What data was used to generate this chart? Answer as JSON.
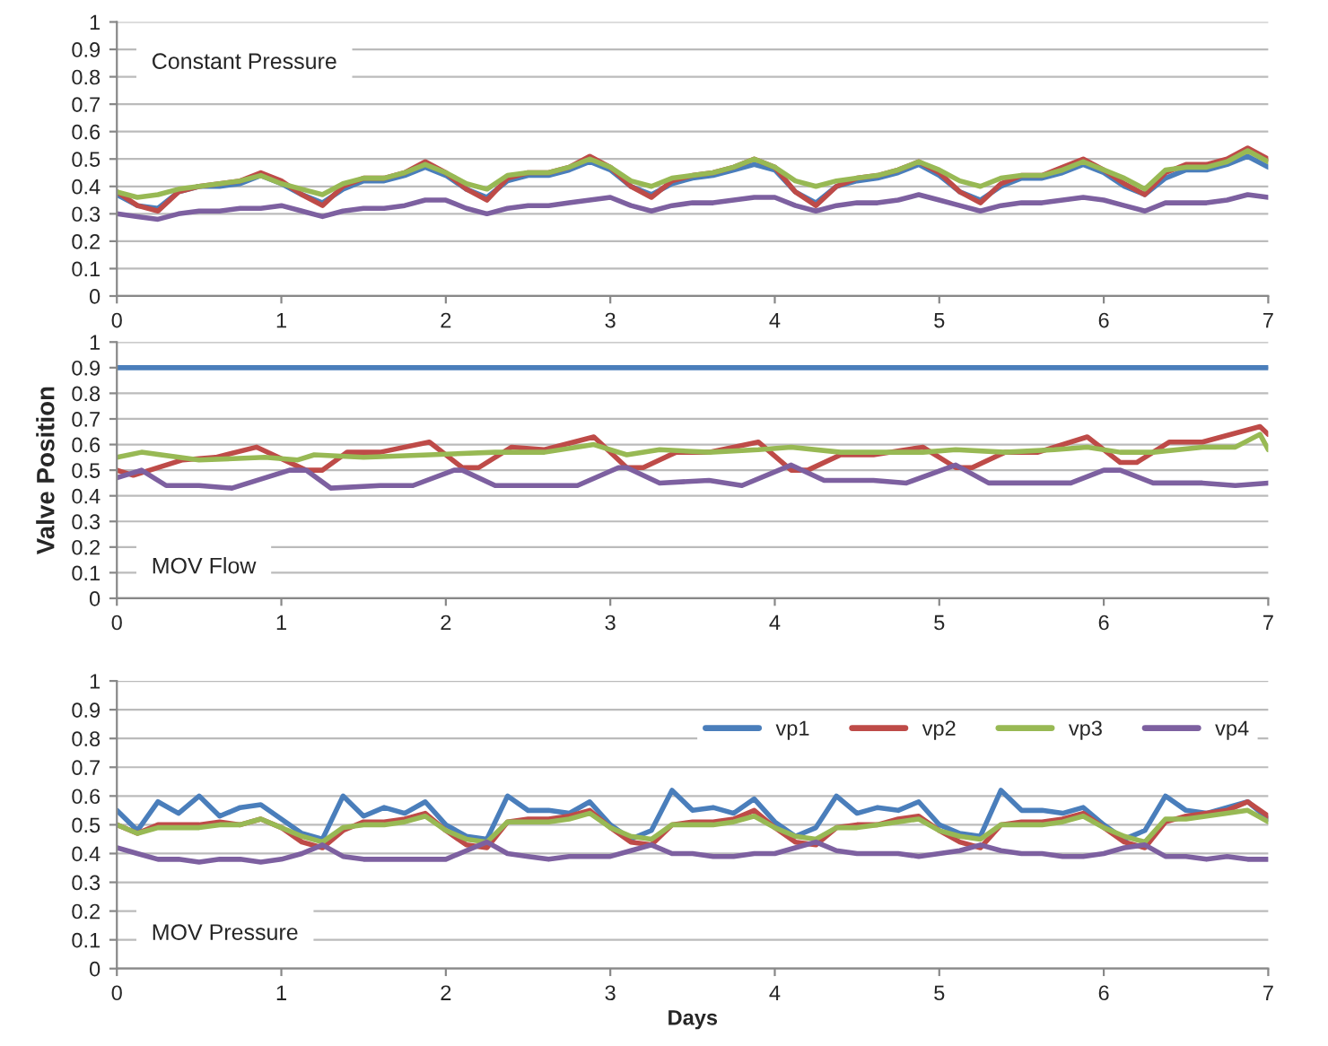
{
  "chart_data": [
    {
      "type": "line",
      "annotations": [
        "Constant Pressure"
      ],
      "xlim": [
        0,
        7
      ],
      "ylim": [
        0,
        1
      ],
      "xticks": [
        0,
        1,
        2,
        3,
        4,
        5,
        6,
        7
      ],
      "yticks": [
        0,
        0.1,
        0.2,
        0.3,
        0.4,
        0.5,
        0.6,
        0.7,
        0.8,
        0.9,
        1
      ],
      "grid": "y",
      "legend": false,
      "marker": "none",
      "line_style": "solid",
      "x": [
        0,
        0.125,
        0.25,
        0.375,
        0.5,
        0.625,
        0.75,
        0.875,
        1,
        1.125,
        1.25,
        1.375,
        1.5,
        1.625,
        1.75,
        1.875,
        2,
        2.125,
        2.25,
        2.375,
        2.5,
        2.625,
        2.75,
        2.875,
        3,
        3.125,
        3.25,
        3.375,
        3.5,
        3.625,
        3.75,
        3.875,
        4,
        4.125,
        4.25,
        4.375,
        4.5,
        4.625,
        4.75,
        4.875,
        5,
        5.125,
        5.25,
        5.375,
        5.5,
        5.625,
        5.75,
        5.875,
        6,
        6.125,
        6.25,
        6.375,
        6.5,
        6.625,
        6.75,
        6.875,
        7
      ],
      "series": [
        {
          "color": "#4a7ebb",
          "values": [
            0.37,
            0.33,
            0.32,
            0.38,
            0.4,
            0.4,
            0.41,
            0.44,
            0.41,
            0.37,
            0.34,
            0.39,
            0.42,
            0.42,
            0.44,
            0.47,
            0.44,
            0.39,
            0.36,
            0.42,
            0.44,
            0.44,
            0.46,
            0.49,
            0.46,
            0.4,
            0.37,
            0.41,
            0.43,
            0.44,
            0.46,
            0.48,
            0.46,
            0.38,
            0.34,
            0.4,
            0.42,
            0.43,
            0.45,
            0.48,
            0.44,
            0.38,
            0.35,
            0.4,
            0.43,
            0.43,
            0.45,
            0.48,
            0.45,
            0.4,
            0.37,
            0.43,
            0.46,
            0.46,
            0.48,
            0.51,
            0.47
          ]
        },
        {
          "color": "#be4b48",
          "values": [
            0.38,
            0.33,
            0.31,
            0.38,
            0.4,
            0.41,
            0.42,
            0.45,
            0.42,
            0.37,
            0.33,
            0.4,
            0.43,
            0.43,
            0.45,
            0.49,
            0.45,
            0.39,
            0.35,
            0.43,
            0.45,
            0.45,
            0.47,
            0.51,
            0.47,
            0.4,
            0.36,
            0.42,
            0.44,
            0.45,
            0.47,
            0.5,
            0.47,
            0.38,
            0.33,
            0.4,
            0.43,
            0.44,
            0.46,
            0.49,
            0.45,
            0.38,
            0.34,
            0.41,
            0.44,
            0.44,
            0.47,
            0.5,
            0.46,
            0.41,
            0.37,
            0.45,
            0.48,
            0.48,
            0.5,
            0.54,
            0.5
          ]
        },
        {
          "color": "#98b954",
          "values": [
            0.38,
            0.36,
            0.37,
            0.39,
            0.4,
            0.41,
            0.42,
            0.44,
            0.41,
            0.39,
            0.37,
            0.41,
            0.43,
            0.43,
            0.45,
            0.48,
            0.45,
            0.41,
            0.39,
            0.44,
            0.45,
            0.45,
            0.47,
            0.5,
            0.47,
            0.42,
            0.4,
            0.43,
            0.44,
            0.45,
            0.47,
            0.5,
            0.47,
            0.42,
            0.4,
            0.42,
            0.43,
            0.44,
            0.46,
            0.49,
            0.46,
            0.42,
            0.4,
            0.43,
            0.44,
            0.44,
            0.46,
            0.49,
            0.46,
            0.43,
            0.39,
            0.46,
            0.47,
            0.47,
            0.49,
            0.53,
            0.49
          ]
        },
        {
          "color": "#7d60a0",
          "values": [
            0.3,
            0.29,
            0.28,
            0.3,
            0.31,
            0.31,
            0.32,
            0.32,
            0.33,
            0.31,
            0.29,
            0.31,
            0.32,
            0.32,
            0.33,
            0.35,
            0.35,
            0.32,
            0.3,
            0.32,
            0.33,
            0.33,
            0.34,
            0.35,
            0.36,
            0.33,
            0.31,
            0.33,
            0.34,
            0.34,
            0.35,
            0.36,
            0.36,
            0.33,
            0.31,
            0.33,
            0.34,
            0.34,
            0.35,
            0.37,
            0.35,
            0.33,
            0.31,
            0.33,
            0.34,
            0.34,
            0.35,
            0.36,
            0.35,
            0.33,
            0.31,
            0.34,
            0.34,
            0.34,
            0.35,
            0.37,
            0.36
          ]
        }
      ]
    },
    {
      "type": "line",
      "annotations": [
        "MOV Flow"
      ],
      "ylabel": "Valve Position",
      "xlim": [
        0,
        7
      ],
      "ylim": [
        0,
        1
      ],
      "xticks": [
        0,
        1,
        2,
        3,
        4,
        5,
        6,
        7
      ],
      "yticks": [
        0,
        0.1,
        0.2,
        0.3,
        0.4,
        0.5,
        0.6,
        0.7,
        0.8,
        0.9,
        1
      ],
      "grid": "y",
      "legend": false,
      "marker": "none",
      "line_style": "solid",
      "series": [
        {
          "color": "#4a7ebb",
          "x": [
            0,
            7
          ],
          "values": [
            0.9,
            0.9
          ]
        },
        {
          "color": "#be4b48",
          "x": [
            0,
            0.1,
            0.4,
            0.6,
            0.85,
            1.15,
            1.25,
            1.4,
            1.6,
            1.9,
            2.1,
            2.2,
            2.4,
            2.6,
            2.9,
            3.1,
            3.2,
            3.4,
            3.6,
            3.9,
            4.1,
            4.2,
            4.4,
            4.6,
            4.9,
            5.1,
            5.2,
            5.4,
            5.6,
            5.9,
            6.1,
            6.2,
            6.4,
            6.6,
            6.95,
            7
          ],
          "values": [
            0.5,
            0.48,
            0.54,
            0.55,
            0.59,
            0.5,
            0.5,
            0.57,
            0.57,
            0.61,
            0.51,
            0.51,
            0.59,
            0.58,
            0.63,
            0.51,
            0.51,
            0.57,
            0.57,
            0.61,
            0.5,
            0.5,
            0.56,
            0.56,
            0.59,
            0.51,
            0.51,
            0.57,
            0.57,
            0.63,
            0.53,
            0.53,
            0.61,
            0.61,
            0.67,
            0.64
          ]
        },
        {
          "color": "#98b954",
          "x": [
            0,
            0.15,
            0.5,
            0.9,
            1.1,
            1.2,
            1.5,
            1.9,
            2.3,
            2.6,
            2.9,
            3.1,
            3.3,
            3.6,
            3.9,
            4.1,
            4.4,
            4.7,
            4.9,
            5.1,
            5.4,
            5.7,
            5.9,
            6.1,
            6.3,
            6.6,
            6.8,
            6.95,
            7
          ],
          "values": [
            0.55,
            0.57,
            0.54,
            0.55,
            0.54,
            0.56,
            0.55,
            0.56,
            0.57,
            0.57,
            0.6,
            0.56,
            0.58,
            0.57,
            0.58,
            0.59,
            0.57,
            0.57,
            0.57,
            0.58,
            0.57,
            0.58,
            0.59,
            0.57,
            0.57,
            0.59,
            0.59,
            0.64,
            0.58
          ]
        },
        {
          "color": "#7d60a0",
          "x": [
            0,
            0.15,
            0.3,
            0.5,
            0.7,
            1.05,
            1.15,
            1.3,
            1.6,
            1.8,
            2.05,
            2.1,
            2.3,
            2.6,
            2.8,
            3.05,
            3.1,
            3.3,
            3.6,
            3.8,
            4.1,
            4.3,
            4.6,
            4.8,
            5.1,
            5.3,
            5.6,
            5.8,
            6.0,
            6.1,
            6.3,
            6.6,
            6.8,
            7
          ],
          "values": [
            0.47,
            0.5,
            0.44,
            0.44,
            0.43,
            0.5,
            0.5,
            0.43,
            0.44,
            0.44,
            0.5,
            0.5,
            0.44,
            0.44,
            0.44,
            0.51,
            0.51,
            0.45,
            0.46,
            0.44,
            0.52,
            0.46,
            0.46,
            0.45,
            0.52,
            0.45,
            0.45,
            0.45,
            0.5,
            0.5,
            0.45,
            0.45,
            0.44,
            0.45
          ]
        }
      ]
    },
    {
      "type": "line",
      "annotations": [
        "MOV Pressure"
      ],
      "xlabel": "Days",
      "xlim": [
        0,
        7
      ],
      "ylim": [
        0,
        1
      ],
      "xticks": [
        0,
        1,
        2,
        3,
        4,
        5,
        6,
        7
      ],
      "yticks": [
        0,
        0.1,
        0.2,
        0.3,
        0.4,
        0.5,
        0.6,
        0.7,
        0.8,
        0.9,
        1
      ],
      "grid": "y",
      "legend": "top right",
      "marker": "none",
      "line_style": "solid",
      "x": [
        0,
        0.125,
        0.25,
        0.375,
        0.5,
        0.625,
        0.75,
        0.875,
        1,
        1.125,
        1.25,
        1.375,
        1.5,
        1.625,
        1.75,
        1.875,
        2,
        2.125,
        2.25,
        2.375,
        2.5,
        2.625,
        2.75,
        2.875,
        3,
        3.125,
        3.25,
        3.375,
        3.5,
        3.625,
        3.75,
        3.875,
        4,
        4.125,
        4.25,
        4.375,
        4.5,
        4.625,
        4.75,
        4.875,
        5,
        5.125,
        5.25,
        5.375,
        5.5,
        5.625,
        5.75,
        5.875,
        6,
        6.125,
        6.25,
        6.375,
        6.5,
        6.625,
        6.75,
        6.875,
        7
      ],
      "series": [
        {
          "name": "vp1",
          "color": "#4a7ebb",
          "values": [
            0.55,
            0.48,
            0.58,
            0.54,
            0.6,
            0.53,
            0.56,
            0.57,
            0.52,
            0.47,
            0.45,
            0.6,
            0.53,
            0.56,
            0.54,
            0.58,
            0.5,
            0.46,
            0.45,
            0.6,
            0.55,
            0.55,
            0.54,
            0.58,
            0.5,
            0.45,
            0.48,
            0.62,
            0.55,
            0.56,
            0.54,
            0.59,
            0.51,
            0.46,
            0.49,
            0.6,
            0.54,
            0.56,
            0.55,
            0.58,
            0.5,
            0.47,
            0.46,
            0.62,
            0.55,
            0.55,
            0.54,
            0.56,
            0.5,
            0.45,
            0.48,
            0.6,
            0.55,
            0.54,
            0.56,
            0.58,
            0.52
          ]
        },
        {
          "name": "vp2",
          "color": "#be4b48",
          "values": [
            0.5,
            0.47,
            0.5,
            0.5,
            0.5,
            0.51,
            0.5,
            0.52,
            0.49,
            0.44,
            0.42,
            0.48,
            0.51,
            0.51,
            0.52,
            0.54,
            0.48,
            0.43,
            0.42,
            0.51,
            0.52,
            0.52,
            0.53,
            0.55,
            0.49,
            0.44,
            0.43,
            0.5,
            0.51,
            0.51,
            0.52,
            0.55,
            0.49,
            0.44,
            0.43,
            0.49,
            0.5,
            0.5,
            0.52,
            0.53,
            0.48,
            0.44,
            0.42,
            0.5,
            0.51,
            0.51,
            0.52,
            0.54,
            0.49,
            0.44,
            0.42,
            0.51,
            0.53,
            0.54,
            0.55,
            0.58,
            0.53
          ]
        },
        {
          "name": "vp3",
          "color": "#98b954",
          "values": [
            0.5,
            0.47,
            0.49,
            0.49,
            0.49,
            0.5,
            0.5,
            0.52,
            0.49,
            0.46,
            0.44,
            0.49,
            0.5,
            0.5,
            0.51,
            0.53,
            0.48,
            0.45,
            0.44,
            0.51,
            0.51,
            0.51,
            0.52,
            0.54,
            0.49,
            0.46,
            0.45,
            0.5,
            0.5,
            0.5,
            0.51,
            0.53,
            0.49,
            0.46,
            0.45,
            0.49,
            0.49,
            0.5,
            0.51,
            0.52,
            0.48,
            0.46,
            0.45,
            0.5,
            0.5,
            0.5,
            0.51,
            0.53,
            0.49,
            0.46,
            0.44,
            0.52,
            0.52,
            0.53,
            0.54,
            0.55,
            0.51
          ]
        },
        {
          "name": "vp4",
          "color": "#7d60a0",
          "values": [
            0.42,
            0.4,
            0.38,
            0.38,
            0.37,
            0.38,
            0.38,
            0.37,
            0.38,
            0.4,
            0.43,
            0.39,
            0.38,
            0.38,
            0.38,
            0.38,
            0.38,
            0.41,
            0.44,
            0.4,
            0.39,
            0.38,
            0.39,
            0.39,
            0.39,
            0.41,
            0.43,
            0.4,
            0.4,
            0.39,
            0.39,
            0.4,
            0.4,
            0.42,
            0.44,
            0.41,
            0.4,
            0.4,
            0.4,
            0.39,
            0.4,
            0.41,
            0.43,
            0.41,
            0.4,
            0.4,
            0.39,
            0.39,
            0.4,
            0.42,
            0.43,
            0.39,
            0.39,
            0.38,
            0.39,
            0.38,
            0.38
          ]
        }
      ]
    }
  ]
}
